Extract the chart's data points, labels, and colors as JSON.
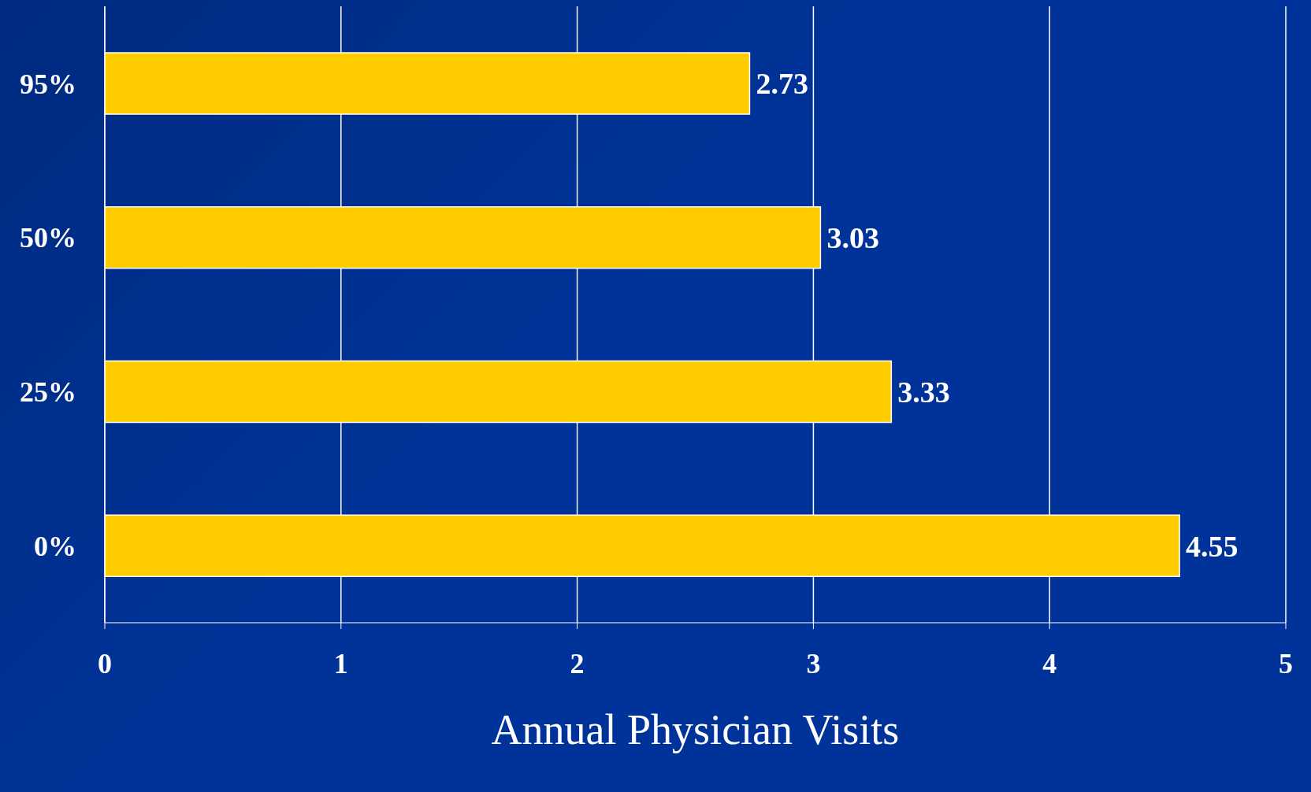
{
  "chart_data": {
    "type": "bar",
    "orientation": "horizontal",
    "xlabel": "Annual Physician Visits",
    "categories": [
      "95%",
      "50%",
      "25%",
      "0%"
    ],
    "values": [
      2.73,
      3.03,
      3.33,
      4.55
    ],
    "color": "#ffcc00",
    "xlim": [
      0,
      5
    ],
    "xticks": [
      0,
      1,
      2,
      3,
      4,
      5
    ],
    "grid": "x",
    "data_labels": true
  }
}
